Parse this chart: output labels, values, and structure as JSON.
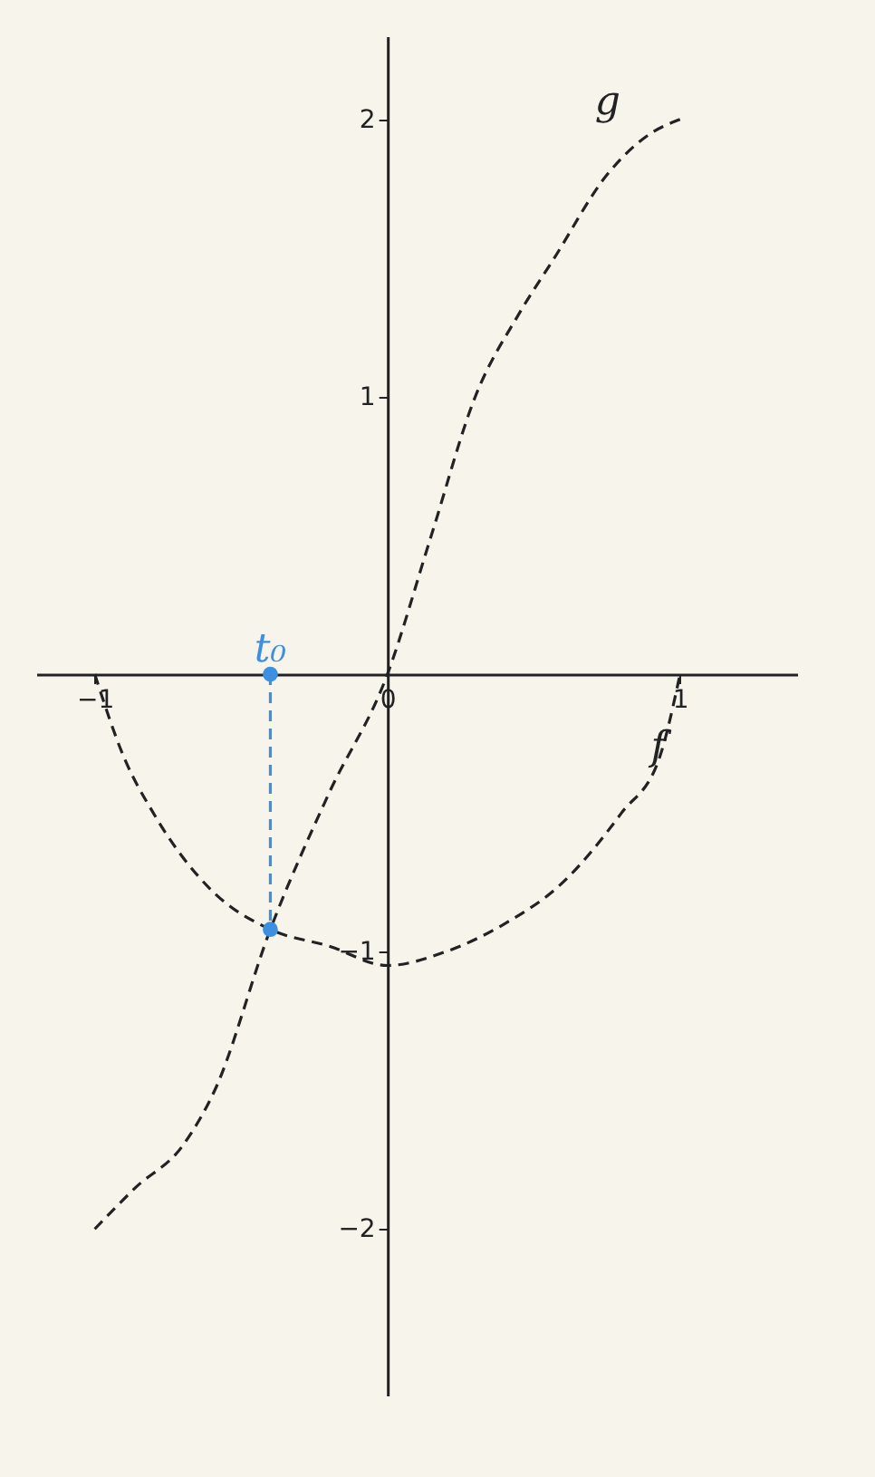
{
  "chart_data": {
    "type": "line",
    "xlim": [
      -1.2,
      1.4
    ],
    "ylim": [
      -2.6,
      2.3
    ],
    "xticks": [
      -1,
      0,
      1
    ],
    "yticks": [
      -2,
      -1,
      1,
      2
    ],
    "grid": false,
    "line_style": "dashed",
    "marker": "none",
    "series": [
      {
        "name": "g",
        "color": "#222222",
        "x": [
          -1,
          -0.86,
          -0.7,
          -0.59,
          -0.4,
          -0.2,
          0,
          0.15,
          0.3,
          0.45,
          0.57,
          0.75,
          0.9,
          1
        ],
        "values": [
          -2,
          -1.85,
          -1.7,
          -1.5,
          -0.92,
          -0.43,
          0,
          0.5,
          1,
          1.3,
          1.5,
          1.8,
          1.95,
          2
        ]
      },
      {
        "name": "f",
        "color": "#222222",
        "x": [
          -1,
          -0.9,
          -0.8,
          -0.6,
          -0.4,
          -0.2,
          0,
          0.2,
          0.4,
          0.6,
          0.8,
          0.93,
          1
        ],
        "values": [
          0,
          -0.3,
          -0.5,
          -0.78,
          -0.92,
          -0.98,
          -1.05,
          -1.0,
          -0.9,
          -0.75,
          -0.5,
          -0.3,
          0
        ]
      },
      {
        "name": "t₀",
        "color": "#3d8fe0",
        "marker": "circle",
        "x": [
          -0.4,
          -0.4
        ],
        "values": [
          0,
          -0.92
        ]
      }
    ]
  }
}
